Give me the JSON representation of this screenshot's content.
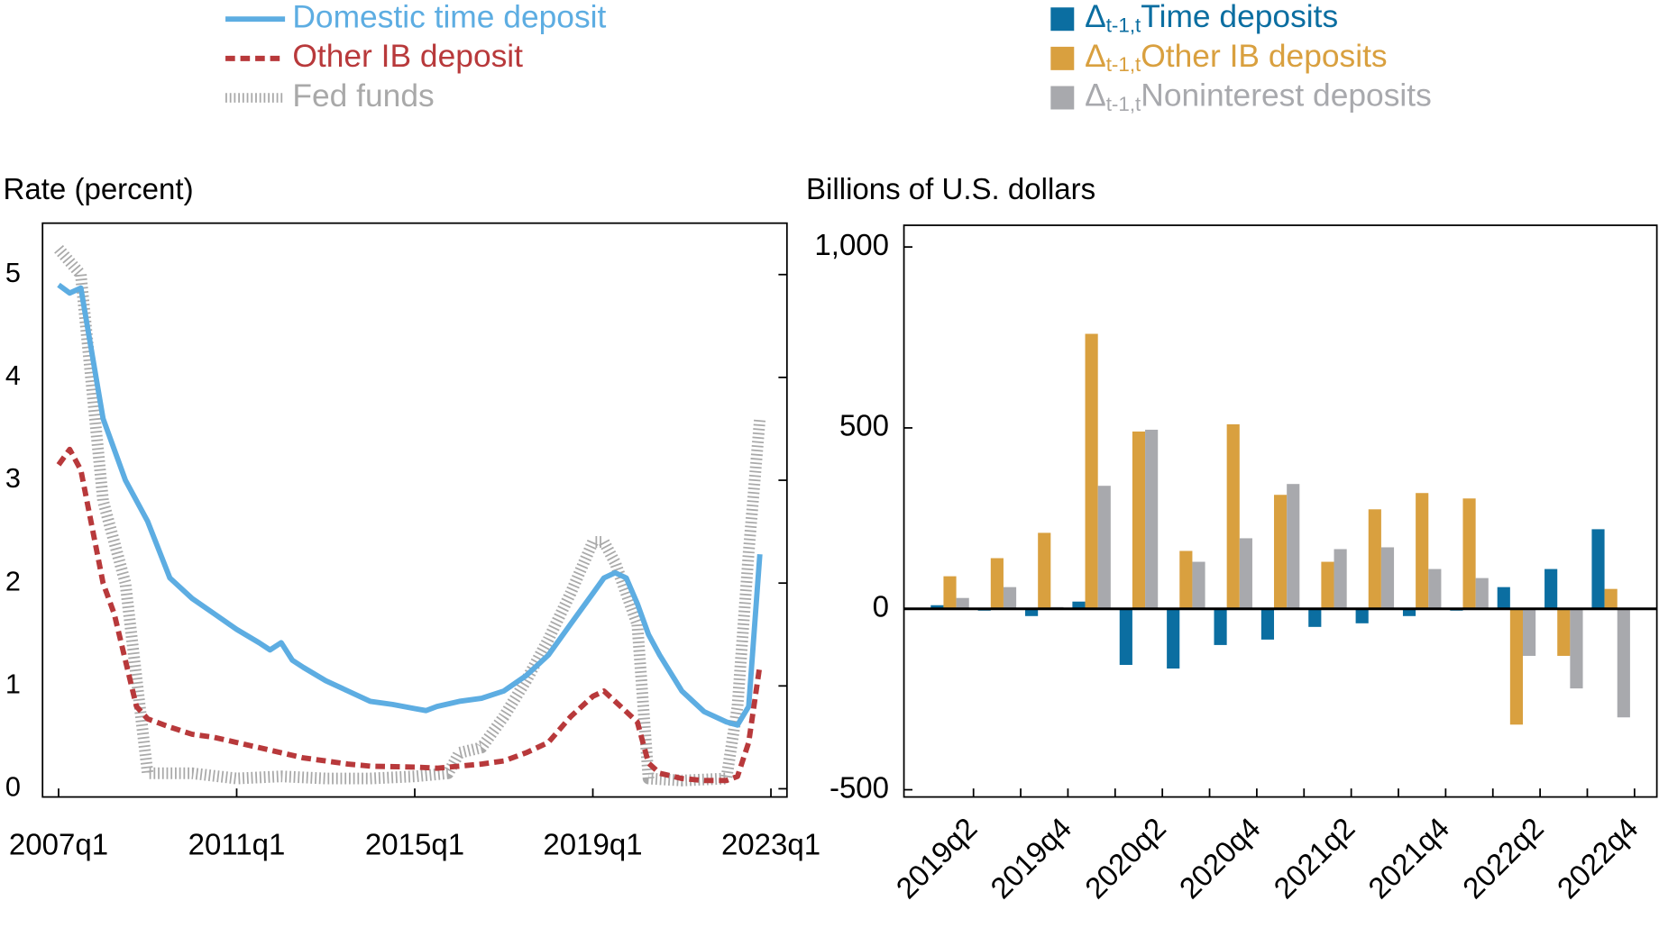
{
  "chart_data": [
    {
      "type": "line",
      "axis_title": "Rate (percent)",
      "xlim": [
        2006.64,
        2023.36
      ],
      "xticks": [
        {
          "value": 2007,
          "label": "2007q1"
        },
        {
          "value": 2011,
          "label": "2011q1"
        },
        {
          "value": 2015,
          "label": "2015q1"
        },
        {
          "value": 2019,
          "label": "2019q1"
        },
        {
          "value": 2023,
          "label": "2023q1"
        }
      ],
      "ylim": [
        -0.08,
        5.5
      ],
      "yticks": [
        0,
        1,
        2,
        3,
        4,
        5
      ],
      "series": [
        {
          "name": "Fed funds",
          "color": "#a9a9a9",
          "style": "hatched",
          "x": [
            2007,
            2007.5,
            2008,
            2008.5,
            2009,
            2009.5,
            2010,
            2011,
            2012,
            2013,
            2014,
            2015,
            2015.75,
            2016,
            2016.5,
            2017,
            2017.5,
            2018,
            2018.5,
            2019,
            2019.25,
            2019.5,
            2020,
            2020.25,
            2021,
            2022,
            2022.25,
            2022.5,
            2022.75
          ],
          "values": [
            5.25,
            5.0,
            2.8,
            2.0,
            0.15,
            0.15,
            0.15,
            0.1,
            0.12,
            0.1,
            0.1,
            0.12,
            0.15,
            0.35,
            0.4,
            0.7,
            1.05,
            1.45,
            1.9,
            2.4,
            2.4,
            2.2,
            1.6,
            0.1,
            0.08,
            0.1,
            0.8,
            2.3,
            3.6
          ]
        },
        {
          "name": "Domestic time deposit",
          "color": "#5dade2",
          "style": "solid",
          "x": [
            2007,
            2007.25,
            2007.5,
            2008,
            2008.5,
            2009,
            2009.5,
            2010,
            2010.5,
            2011,
            2011.5,
            2011.75,
            2012,
            2012.25,
            2012.5,
            2013,
            2013.5,
            2014,
            2014.5,
            2015,
            2015.25,
            2015.5,
            2016,
            2016.5,
            2017,
            2017.5,
            2018,
            2018.5,
            2019,
            2019.25,
            2019.5,
            2019.75,
            2020,
            2020.25,
            2020.5,
            2021,
            2021.5,
            2022,
            2022.25,
            2022.5,
            2022.75
          ],
          "values": [
            4.9,
            4.82,
            4.87,
            3.6,
            3.0,
            2.6,
            2.05,
            1.85,
            1.7,
            1.55,
            1.42,
            1.35,
            1.42,
            1.25,
            1.18,
            1.05,
            0.95,
            0.85,
            0.82,
            0.78,
            0.76,
            0.8,
            0.85,
            0.88,
            0.95,
            1.1,
            1.3,
            1.6,
            1.9,
            2.05,
            2.1,
            2.05,
            1.8,
            1.5,
            1.3,
            0.95,
            0.75,
            0.65,
            0.62,
            0.8,
            2.28
          ]
        },
        {
          "name": "Other IB deposit",
          "color": "#b8393b",
          "style": "dashed",
          "x": [
            2007,
            2007.25,
            2007.5,
            2008,
            2008.25,
            2008.75,
            2009,
            2009.5,
            2010,
            2010.5,
            2011,
            2011.5,
            2012,
            2012.5,
            2013,
            2013.5,
            2014,
            2015,
            2015.5,
            2016,
            2016.5,
            2017,
            2017.5,
            2018,
            2018.5,
            2019,
            2019.25,
            2019.5,
            2020,
            2020.25,
            2020.5,
            2021,
            2021.5,
            2022,
            2022.25,
            2022.5,
            2022.75
          ],
          "values": [
            3.15,
            3.3,
            3.1,
            2.0,
            1.7,
            0.8,
            0.68,
            0.6,
            0.53,
            0.5,
            0.45,
            0.4,
            0.35,
            0.3,
            0.27,
            0.24,
            0.22,
            0.21,
            0.2,
            0.22,
            0.24,
            0.27,
            0.35,
            0.45,
            0.7,
            0.9,
            0.95,
            0.85,
            0.65,
            0.25,
            0.15,
            0.1,
            0.08,
            0.08,
            0.12,
            0.45,
            1.2
          ]
        }
      ]
    },
    {
      "type": "bar",
      "axis_title": "Billions of U.S. dollars",
      "legend_prefix": "Δ",
      "legend_prefix_sub": "t-1,t",
      "categories": [
        "2019q2",
        null,
        "2019q4",
        null,
        "2020q2",
        null,
        "2020q4",
        null,
        "2021q2",
        null,
        "2021q4",
        null,
        "2022q2",
        null,
        "2022q4"
      ],
      "ylim": [
        -520,
        1060
      ],
      "yticks": [
        -500,
        0,
        500,
        {
          "value": 1000,
          "label": "1,000"
        }
      ],
      "series": [
        {
          "name": "Time deposits",
          "color": "#0b6ea1",
          "values": [
            10,
            -5,
            -20,
            20,
            -155,
            -165,
            -100,
            -85,
            -50,
            -40,
            -20,
            -5,
            60,
            110,
            220
          ]
        },
        {
          "name": "Other IB deposits",
          "color": "#d9a03f",
          "values": [
            90,
            140,
            210,
            760,
            490,
            160,
            510,
            315,
            130,
            275,
            320,
            305,
            -320,
            -130,
            55
          ]
        },
        {
          "name": "Noninterest deposits",
          "color": "#a8a9ad",
          "values": [
            30,
            60,
            5,
            340,
            495,
            130,
            195,
            345,
            165,
            170,
            110,
            85,
            -130,
            -220,
            -300
          ]
        }
      ]
    }
  ]
}
